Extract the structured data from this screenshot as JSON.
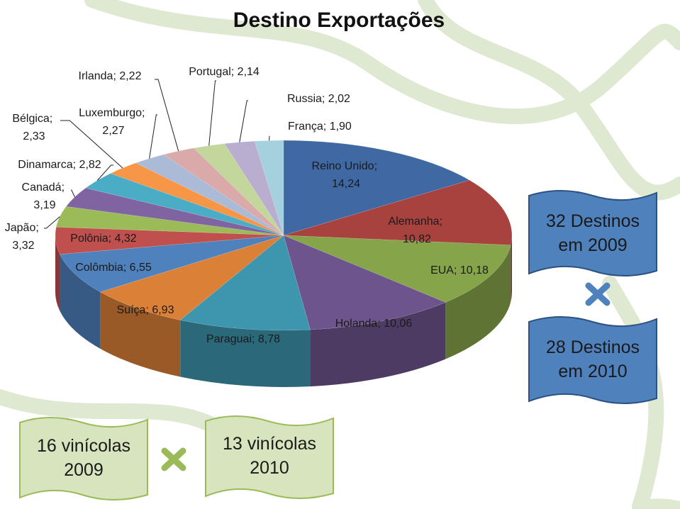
{
  "chart_data": {
    "type": "pie",
    "title": "Destino Exportações",
    "label_separator": "; ",
    "categories": [
      "Reino Unido",
      "Alemanha",
      "EUA",
      "Holanda",
      "Paraguai",
      "Suíça",
      "Colômbia",
      "Polônia",
      "Japão",
      "Canadá",
      "Dinamarca",
      "Bélgica",
      "Luxemburgo",
      "Irlanda",
      "Portugal",
      "Russia",
      "França"
    ],
    "values": [
      14.24,
      10.82,
      10.18,
      10.06,
      8.78,
      6.93,
      6.55,
      4.32,
      3.32,
      3.19,
      2.82,
      2.33,
      2.27,
      2.22,
      2.14,
      2.02,
      1.9
    ],
    "value_labels": [
      "14,24",
      "10,82",
      "10,18",
      "10,06",
      "8,78",
      "6,93",
      "6,55",
      "4,32",
      "3,32",
      "3,19",
      "2,82",
      "2,33",
      "2,27",
      "2,22",
      "2,14",
      "2,02",
      "1,90"
    ],
    "colors": [
      "#4068a3",
      "#a8423f",
      "#86a44a",
      "#6e548d",
      "#3d96ae",
      "#da8137",
      "#4f81bd",
      "#c0504d",
      "#9bbb59",
      "#8064a2",
      "#4bacc6",
      "#f79646",
      "#aabad7",
      "#d9aaa9",
      "#c3d69b",
      "#b9add0",
      "#a5d0de"
    ],
    "annotations": [
      {
        "lines": [
          "32 Destinos",
          "em 2009"
        ]
      },
      {
        "lines": [
          "28 Destinos",
          "em 2010"
        ]
      },
      {
        "lines": [
          "16 vinícolas",
          "2009"
        ]
      },
      {
        "lines": [
          "13 vinícolas",
          "2010"
        ]
      }
    ]
  }
}
